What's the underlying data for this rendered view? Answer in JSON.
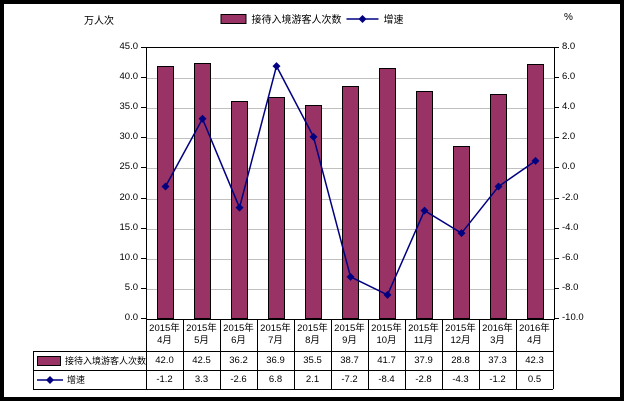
{
  "chart_data": {
    "type": "combo-bar-line",
    "categories": [
      {
        "line1": "2015年",
        "line2": "4月"
      },
      {
        "line1": "2015年",
        "line2": "5月"
      },
      {
        "line1": "2015年",
        "line2": "6月"
      },
      {
        "line1": "2015年",
        "line2": "7月"
      },
      {
        "line1": "2015年",
        "line2": "8月"
      },
      {
        "line1": "2015年",
        "line2": "9月"
      },
      {
        "line1": "2015年",
        "line2": "10月"
      },
      {
        "line1": "2015年",
        "line2": "11月"
      },
      {
        "line1": "2015年",
        "line2": "12月"
      },
      {
        "line1": "2016年",
        "line2": "3月"
      },
      {
        "line1": "2016年",
        "line2": "4月"
      }
    ],
    "series": [
      {
        "name": "接待入境游客人次数",
        "type": "bar",
        "axis": "left",
        "values": [
          42.0,
          42.5,
          36.2,
          36.9,
          35.5,
          38.7,
          41.7,
          37.9,
          28.8,
          37.3,
          42.3
        ]
      },
      {
        "name": "增速",
        "type": "line",
        "axis": "right",
        "values": [
          -1.2,
          3.3,
          -2.6,
          6.8,
          2.1,
          -7.2,
          -8.4,
          -2.8,
          -4.3,
          -1.2,
          0.5
        ]
      }
    ],
    "left_axis": {
      "label": "万人次",
      "min": 0.0,
      "max": 45.0,
      "step": 5.0
    },
    "right_axis": {
      "label": "%",
      "min": -10.0,
      "max": 8.0,
      "step": 2.0
    },
    "grid": true,
    "legend_position": "top",
    "data_table": true,
    "colors": {
      "bar_fill": "#993366",
      "bar_border": "#000000",
      "line": "#000080",
      "gridline": "#c0c0c0",
      "axis": "#000000",
      "background": "#ffffff",
      "frame": "#000000"
    }
  }
}
